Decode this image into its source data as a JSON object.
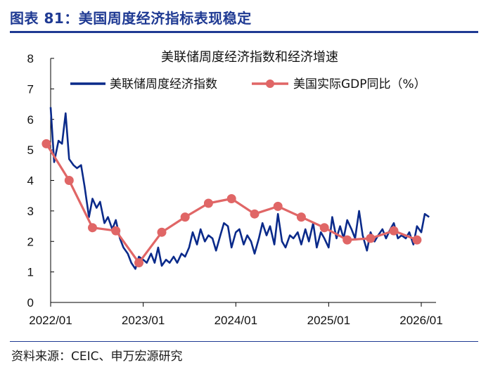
{
  "figure": {
    "title": "图表 81：美国周度经济指标表现稳定",
    "source": "资料来源：CEIC、申万宏源研究"
  },
  "colors": {
    "wei": "#0a2a8a",
    "gdp": "#e06666",
    "rule": "#1f3a93"
  },
  "chart_data": {
    "type": "line",
    "title": "美联储周度经济指数和经济增速",
    "xlabel": "",
    "ylabel": "",
    "ylim": [
      0,
      8
    ],
    "yticks": [
      "0",
      "1",
      "2",
      "3",
      "4",
      "5",
      "6",
      "7",
      "8"
    ],
    "xlim": [
      "2022/01",
      "2026/02"
    ],
    "xticks": [
      "2022/01",
      "2023/01",
      "2024/01",
      "2025/01",
      "2026/01"
    ],
    "grid": false,
    "legend_position": "top",
    "series": [
      {
        "name": "美联储周度经济指数",
        "style": "line",
        "x": [
          "2022/01/01",
          "2022/01/15",
          "2022/02/01",
          "2022/02/15",
          "2022/03/01",
          "2022/03/15",
          "2022/04/01",
          "2022/04/15",
          "2022/05/01",
          "2022/05/15",
          "2022/06/01",
          "2022/06/15",
          "2022/07/01",
          "2022/07/15",
          "2022/08/01",
          "2022/08/15",
          "2022/09/01",
          "2022/09/15",
          "2022/10/01",
          "2022/10/15",
          "2022/11/01",
          "2022/11/15",
          "2022/12/01",
          "2022/12/15",
          "2023/01/01",
          "2023/01/15",
          "2023/02/01",
          "2023/02/15",
          "2023/03/01",
          "2023/03/15",
          "2023/04/01",
          "2023/04/15",
          "2023/05/01",
          "2023/05/15",
          "2023/06/01",
          "2023/06/15",
          "2023/07/01",
          "2023/07/15",
          "2023/08/01",
          "2023/08/15",
          "2023/09/01",
          "2023/09/15",
          "2023/10/01",
          "2023/10/15",
          "2023/11/01",
          "2023/11/15",
          "2023/12/01",
          "2023/12/15",
          "2024/01/01",
          "2024/01/15",
          "2024/02/01",
          "2024/02/15",
          "2024/03/01",
          "2024/03/15",
          "2024/04/01",
          "2024/04/15",
          "2024/05/01",
          "2024/05/15",
          "2024/06/01",
          "2024/06/15",
          "2024/07/01",
          "2024/07/15",
          "2024/08/01",
          "2024/08/15",
          "2024/09/01",
          "2024/09/15",
          "2024/10/01",
          "2024/10/15",
          "2024/11/01",
          "2024/11/15",
          "2024/12/01",
          "2024/12/15",
          "2025/01/01",
          "2025/01/15",
          "2025/02/01",
          "2025/02/15",
          "2025/03/01",
          "2025/03/15",
          "2025/04/01",
          "2025/04/15",
          "2025/05/01",
          "2025/05/15",
          "2025/06/01",
          "2025/06/15",
          "2025/07/01",
          "2025/07/15",
          "2025/08/01",
          "2025/08/15",
          "2025/09/01",
          "2025/09/15",
          "2025/10/01",
          "2025/10/15",
          "2025/11/01",
          "2025/11/15",
          "2025/12/01",
          "2025/12/15",
          "2026/01/01",
          "2026/01/15",
          "2026/02/01"
        ],
        "values": [
          6.4,
          4.6,
          5.3,
          5.2,
          6.2,
          4.7,
          4.5,
          4.4,
          4.5,
          3.8,
          2.8,
          3.4,
          3.1,
          3.3,
          2.6,
          2.8,
          2.4,
          2.7,
          2.1,
          1.8,
          1.6,
          1.3,
          1.1,
          1.5,
          1.4,
          1.3,
          1.6,
          1.3,
          1.8,
          1.2,
          1.4,
          1.3,
          1.5,
          1.3,
          1.6,
          1.5,
          1.8,
          2.3,
          1.9,
          2.4,
          2.0,
          2.2,
          2.1,
          1.7,
          2.2,
          2.6,
          2.5,
          1.8,
          2.3,
          2.4,
          1.9,
          2.2,
          2.0,
          1.6,
          2.1,
          2.6,
          2.2,
          2.5,
          1.9,
          2.9,
          2.0,
          1.8,
          2.2,
          2.1,
          2.3,
          1.9,
          2.4,
          2.0,
          2.6,
          1.8,
          2.3,
          2.1,
          1.8,
          2.8,
          2.1,
          2.5,
          2.1,
          2.7,
          2.4,
          2.1,
          3.0,
          2.2,
          1.7,
          2.3,
          2.0,
          2.2,
          2.4,
          2.1,
          2.4,
          2.6,
          2.1,
          2.2,
          2.1,
          2.3,
          1.9,
          2.5,
          2.3,
          2.9,
          2.8
        ]
      },
      {
        "name": "美国实际GDP同比（%）",
        "style": "line-markers",
        "x": [
          "2021/12/15",
          "2022/03/15",
          "2022/06/15",
          "2022/09/15",
          "2022/12/15",
          "2023/03/15",
          "2023/06/15",
          "2023/09/15",
          "2023/12/15",
          "2024/03/15",
          "2024/06/15",
          "2024/09/15",
          "2024/12/15",
          "2025/03/15",
          "2025/06/15",
          "2025/09/15",
          "2025/12/15"
        ],
        "values": [
          5.2,
          4.0,
          2.45,
          2.35,
          1.3,
          2.3,
          2.8,
          3.25,
          3.4,
          2.9,
          3.15,
          2.8,
          2.45,
          2.05,
          2.1,
          2.35,
          2.05
        ]
      }
    ]
  }
}
